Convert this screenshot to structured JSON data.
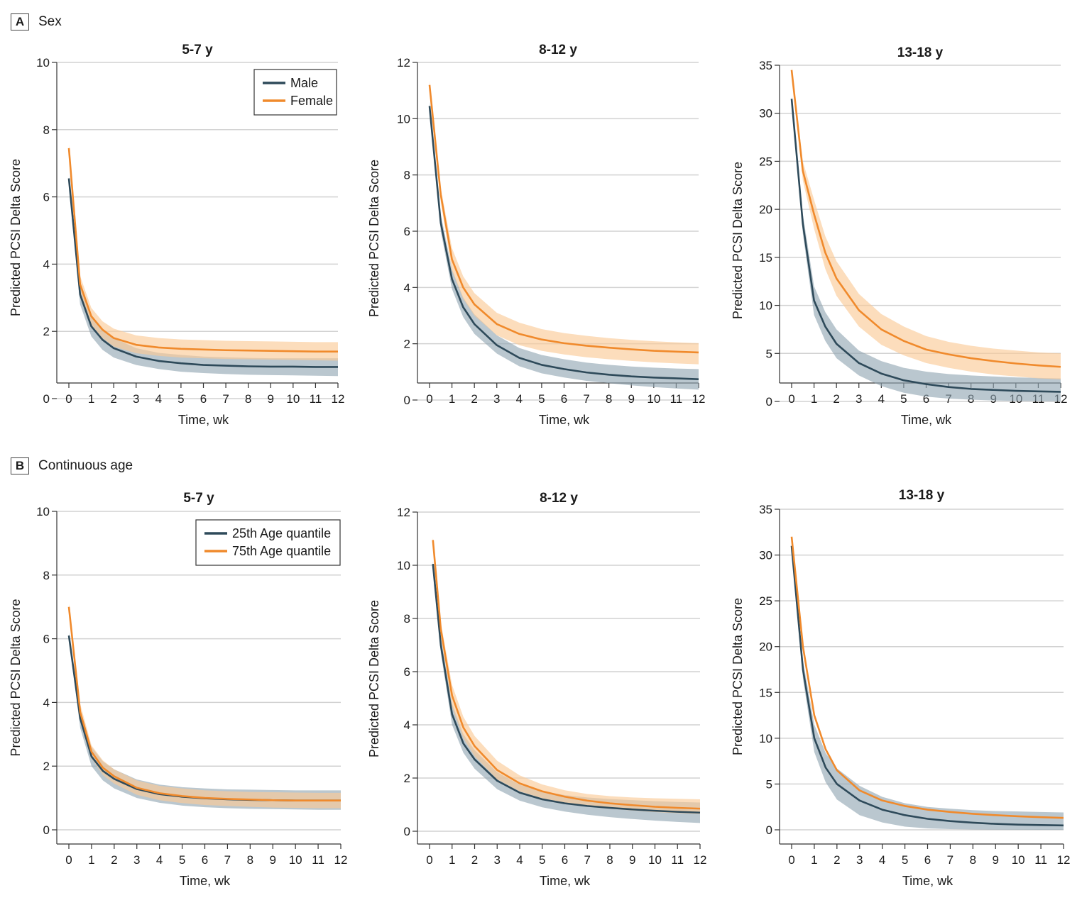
{
  "sections": [
    {
      "letter": "A",
      "title": "Sex"
    },
    {
      "letter": "B",
      "title": "Continuous age"
    }
  ],
  "colors": {
    "series1": "#2E4A5A",
    "series2": "#F08A2C",
    "band1": "#8FA4B2",
    "band2": "#FBCB98",
    "grid": "#d2d2d2"
  },
  "chart_data": [
    {
      "type": "line",
      "section": "A",
      "title": "5-7 y",
      "xlabel": "Time, wk",
      "ylabel": "Predicted PCSI Delta Score",
      "xlim": [
        0,
        12
      ],
      "ylim": [
        0,
        10
      ],
      "xticks": [
        0,
        1,
        2,
        3,
        4,
        5,
        6,
        7,
        8,
        9,
        10,
        11,
        12
      ],
      "yticks": [
        0,
        2,
        4,
        6,
        8,
        10
      ],
      "legend": "top-right",
      "x": [
        0,
        0.5,
        1,
        1.5,
        2,
        3,
        4,
        5,
        6,
        7,
        8,
        9,
        10,
        11,
        12
      ],
      "series": [
        {
          "name": "Male",
          "values": [
            6.55,
            3.1,
            2.15,
            1.75,
            1.5,
            1.25,
            1.12,
            1.05,
            1.0,
            0.98,
            0.96,
            0.95,
            0.95,
            0.94,
            0.94
          ],
          "lower": [
            6.45,
            2.8,
            1.85,
            1.45,
            1.22,
            1.0,
            0.88,
            0.8,
            0.76,
            0.73,
            0.71,
            0.7,
            0.69,
            0.68,
            0.67
          ],
          "upper": [
            6.65,
            3.4,
            2.45,
            2.05,
            1.8,
            1.5,
            1.36,
            1.3,
            1.25,
            1.23,
            1.21,
            1.2,
            1.2,
            1.2,
            1.2
          ]
        },
        {
          "name": "Female",
          "values": [
            7.45,
            3.4,
            2.45,
            2.05,
            1.8,
            1.6,
            1.52,
            1.48,
            1.46,
            1.44,
            1.43,
            1.42,
            1.41,
            1.4,
            1.4
          ],
          "lower": [
            7.35,
            3.15,
            2.2,
            1.8,
            1.55,
            1.35,
            1.27,
            1.22,
            1.2,
            1.18,
            1.17,
            1.16,
            1.15,
            1.14,
            1.13
          ],
          "upper": [
            7.55,
            3.65,
            2.7,
            2.3,
            2.08,
            1.88,
            1.8,
            1.76,
            1.74,
            1.72,
            1.71,
            1.7,
            1.69,
            1.68,
            1.68
          ]
        }
      ]
    },
    {
      "type": "line",
      "section": "A",
      "title": "8-12 y",
      "xlabel": "Time, wk",
      "ylabel": "Predicted PCSI Delta Score",
      "xlim": [
        0,
        12
      ],
      "ylim": [
        0,
        12
      ],
      "xticks": [
        0,
        1,
        2,
        3,
        4,
        5,
        6,
        7,
        8,
        9,
        10,
        11,
        12
      ],
      "yticks": [
        0,
        2,
        4,
        6,
        8,
        10,
        12
      ],
      "x": [
        0,
        0.5,
        1,
        1.5,
        2,
        3,
        4,
        5,
        6,
        7,
        8,
        9,
        10,
        11,
        12
      ],
      "series": [
        {
          "name": "Male",
          "values": [
            10.45,
            6.3,
            4.3,
            3.3,
            2.7,
            1.95,
            1.5,
            1.25,
            1.1,
            0.98,
            0.9,
            0.84,
            0.8,
            0.77,
            0.74
          ],
          "lower": [
            10.3,
            6.0,
            3.95,
            2.95,
            2.35,
            1.65,
            1.2,
            0.95,
            0.8,
            0.68,
            0.6,
            0.52,
            0.46,
            0.41,
            0.37
          ],
          "upper": [
            10.6,
            6.6,
            4.65,
            3.65,
            3.05,
            2.3,
            1.85,
            1.6,
            1.45,
            1.33,
            1.25,
            1.19,
            1.15,
            1.12,
            1.1
          ]
        },
        {
          "name": "Female",
          "values": [
            11.2,
            7.3,
            5.0,
            4.0,
            3.4,
            2.7,
            2.35,
            2.15,
            2.02,
            1.93,
            1.86,
            1.8,
            1.75,
            1.72,
            1.69
          ],
          "lower": [
            11.05,
            7.05,
            4.6,
            3.6,
            3.0,
            2.3,
            1.95,
            1.75,
            1.62,
            1.52,
            1.45,
            1.39,
            1.34,
            1.3,
            1.27
          ],
          "upper": [
            11.35,
            7.55,
            5.4,
            4.4,
            3.8,
            3.1,
            2.75,
            2.52,
            2.38,
            2.28,
            2.2,
            2.14,
            2.09,
            2.05,
            2.02
          ]
        }
      ]
    },
    {
      "type": "line",
      "section": "A",
      "title": "13-18 y",
      "xlabel": "Time, wk",
      "ylabel": "Predicted PCSI Delta Score",
      "xlim": [
        0,
        12
      ],
      "ylim": [
        0,
        35
      ],
      "xticks": [
        0,
        1,
        2,
        3,
        4,
        5,
        6,
        7,
        8,
        9,
        10,
        11,
        12
      ],
      "yticks": [
        0,
        5,
        10,
        15,
        20,
        25,
        30,
        35
      ],
      "x": [
        0,
        0.5,
        1,
        1.5,
        2,
        3,
        4,
        5,
        6,
        7,
        8,
        9,
        10,
        11,
        12
      ],
      "series": [
        {
          "name": "Male",
          "values": [
            31.5,
            18.5,
            10.5,
            7.8,
            6.0,
            4.0,
            2.9,
            2.2,
            1.8,
            1.5,
            1.3,
            1.2,
            1.1,
            1.05,
            1.0
          ],
          "lower": [
            31.2,
            17.5,
            9.0,
            6.3,
            4.5,
            2.7,
            1.6,
            0.9,
            0.5,
            0.3,
            0.18,
            0.1,
            0.06,
            0.04,
            0.02
          ],
          "upper": [
            31.8,
            19.5,
            12.0,
            9.3,
            7.5,
            5.3,
            4.2,
            3.5,
            3.1,
            2.85,
            2.7,
            2.6,
            2.5,
            2.45,
            2.4
          ]
        },
        {
          "name": "Female",
          "values": [
            34.5,
            24.0,
            19.5,
            15.5,
            12.8,
            9.5,
            7.5,
            6.3,
            5.4,
            4.9,
            4.5,
            4.2,
            3.95,
            3.75,
            3.6
          ],
          "lower": [
            34.2,
            23.0,
            18.0,
            13.8,
            11.0,
            7.8,
            5.9,
            4.8,
            4.0,
            3.5,
            3.1,
            2.8,
            2.6,
            2.4,
            2.3
          ],
          "upper": [
            34.8,
            25.0,
            21.0,
            17.2,
            14.6,
            11.2,
            9.1,
            7.8,
            6.8,
            6.2,
            5.8,
            5.5,
            5.3,
            5.1,
            5.0
          ]
        }
      ]
    },
    {
      "type": "line",
      "section": "B",
      "title": "5-7 y",
      "xlabel": "Time, wk",
      "ylabel": "Predicted PCSI Delta Score",
      "xlim": [
        0,
        12
      ],
      "ylim": [
        0,
        10
      ],
      "xticks": [
        0,
        1,
        2,
        3,
        4,
        5,
        6,
        7,
        8,
        9,
        10,
        11,
        12
      ],
      "yticks": [
        0,
        2,
        4,
        6,
        8,
        10
      ],
      "legend": "top-right",
      "x": [
        0,
        0.5,
        1,
        1.5,
        2,
        3,
        4,
        5,
        6,
        7,
        8,
        9,
        10,
        11,
        12
      ],
      "series": [
        {
          "name": "25th Age quantile",
          "values": [
            6.1,
            3.5,
            2.3,
            1.85,
            1.6,
            1.28,
            1.12,
            1.04,
            0.99,
            0.96,
            0.94,
            0.93,
            0.92,
            0.92,
            0.92
          ],
          "lower": [
            6.0,
            3.2,
            2.0,
            1.55,
            1.3,
            1.0,
            0.85,
            0.76,
            0.71,
            0.68,
            0.66,
            0.65,
            0.64,
            0.63,
            0.63
          ],
          "upper": [
            6.2,
            3.8,
            2.6,
            2.15,
            1.9,
            1.58,
            1.42,
            1.34,
            1.3,
            1.27,
            1.26,
            1.25,
            1.24,
            1.24,
            1.24
          ]
        },
        {
          "name": "75th Age quantile",
          "values": [
            7.0,
            3.7,
            2.45,
            1.95,
            1.68,
            1.32,
            1.15,
            1.06,
            1.0,
            0.97,
            0.95,
            0.93,
            0.92,
            0.92,
            0.92
          ],
          "lower": [
            6.9,
            3.45,
            2.25,
            1.72,
            1.45,
            1.1,
            0.93,
            0.84,
            0.78,
            0.75,
            0.72,
            0.7,
            0.69,
            0.68,
            0.68
          ],
          "upper": [
            7.1,
            3.95,
            2.65,
            2.18,
            1.9,
            1.55,
            1.38,
            1.3,
            1.24,
            1.21,
            1.19,
            1.18,
            1.17,
            1.16,
            1.16
          ]
        }
      ]
    },
    {
      "type": "line",
      "section": "B",
      "title": "8-12 y",
      "xlabel": "Time, wk",
      "ylabel": "Predicted PCSI Delta Score",
      "xlim": [
        0,
        12
      ],
      "ylim": [
        0,
        12
      ],
      "xticks": [
        0,
        1,
        2,
        3,
        4,
        5,
        6,
        7,
        8,
        9,
        10,
        11,
        12
      ],
      "yticks": [
        0,
        2,
        4,
        6,
        8,
        10,
        12
      ],
      "x": [
        0.15,
        0.5,
        1,
        1.5,
        2,
        3,
        4,
        5,
        6,
        7,
        8,
        9,
        10,
        11,
        12
      ],
      "series": [
        {
          "name": "25th Age quantile",
          "values": [
            10.05,
            7.0,
            4.4,
            3.3,
            2.7,
            1.9,
            1.45,
            1.2,
            1.05,
            0.95,
            0.88,
            0.82,
            0.77,
            0.73,
            0.7
          ],
          "lower": [
            9.95,
            6.7,
            4.0,
            2.95,
            2.35,
            1.58,
            1.15,
            0.9,
            0.74,
            0.62,
            0.53,
            0.46,
            0.4,
            0.35,
            0.31
          ],
          "upper": [
            10.15,
            7.3,
            4.8,
            3.65,
            3.05,
            2.22,
            1.75,
            1.5,
            1.36,
            1.27,
            1.21,
            1.17,
            1.13,
            1.1,
            1.08
          ]
        },
        {
          "name": "75th Age quantile",
          "values": [
            10.95,
            7.6,
            5.1,
            3.9,
            3.2,
            2.3,
            1.8,
            1.5,
            1.3,
            1.15,
            1.05,
            0.98,
            0.92,
            0.88,
            0.85
          ],
          "lower": [
            10.85,
            7.35,
            4.7,
            3.5,
            2.82,
            1.95,
            1.5,
            1.24,
            1.07,
            0.94,
            0.85,
            0.78,
            0.72,
            0.68,
            0.65
          ],
          "upper": [
            11.05,
            7.85,
            5.5,
            4.3,
            3.58,
            2.65,
            2.1,
            1.76,
            1.54,
            1.4,
            1.32,
            1.27,
            1.24,
            1.22,
            1.2
          ]
        }
      ]
    },
    {
      "type": "line",
      "section": "B",
      "title": "13-18 y",
      "xlabel": "Time, wk",
      "ylabel": "Predicted PCSI Delta Score",
      "xlim": [
        0,
        12
      ],
      "ylim": [
        0,
        35
      ],
      "xticks": [
        0,
        1,
        2,
        3,
        4,
        5,
        6,
        7,
        8,
        9,
        10,
        11,
        12
      ],
      "yticks": [
        0,
        5,
        10,
        15,
        20,
        25,
        30,
        35
      ],
      "x": [
        0,
        0.5,
        1,
        1.5,
        2,
        3,
        4,
        5,
        6,
        7,
        8,
        9,
        10,
        11,
        12
      ],
      "series": [
        {
          "name": "25th Age quantile",
          "values": [
            31.0,
            17.5,
            10.0,
            6.8,
            5.0,
            3.2,
            2.2,
            1.6,
            1.2,
            0.95,
            0.78,
            0.65,
            0.57,
            0.52,
            0.48
          ],
          "lower": [
            30.8,
            16.5,
            8.5,
            5.2,
            3.3,
            1.6,
            0.8,
            0.35,
            0.15,
            0.08,
            0.04,
            0.02,
            0.01,
            0.0,
            0.0
          ],
          "upper": [
            31.2,
            18.5,
            11.5,
            8.4,
            6.7,
            4.8,
            3.6,
            2.9,
            2.5,
            2.3,
            2.15,
            2.05,
            2.0,
            1.95,
            1.9
          ]
        },
        {
          "name": "75th Age quantile",
          "values": [
            32.0,
            20.0,
            12.5,
            8.8,
            6.5,
            4.3,
            3.2,
            2.6,
            2.2,
            1.95,
            1.75,
            1.6,
            1.48,
            1.38,
            1.3
          ]
        }
      ]
    }
  ]
}
